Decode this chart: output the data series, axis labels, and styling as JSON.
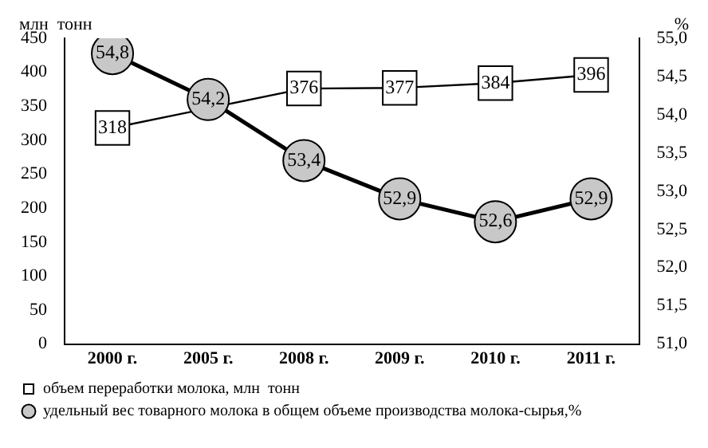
{
  "chart_data": {
    "type": "line",
    "categories": [
      "2000 г.",
      "2005 г.",
      "2008 г.",
      "2009 г.",
      "2010 г.",
      "2011 г."
    ],
    "ylabel": "млн  тонн",
    "y2label": "%",
    "ylim": [
      0,
      450
    ],
    "yticks": [
      0,
      50,
      100,
      150,
      200,
      250,
      300,
      350,
      400,
      450
    ],
    "y2lim": [
      51,
      55
    ],
    "y2ticks": [
      {
        "value": 51,
        "label": "51,0"
      },
      {
        "value": 51.5,
        "label": "51,5"
      },
      {
        "value": 52,
        "label": "52,0"
      },
      {
        "value": 52.5,
        "label": "52,5"
      },
      {
        "value": 53,
        "label": "53,0"
      },
      {
        "value": 53.5,
        "label": "53,5"
      },
      {
        "value": 54,
        "label": "54,0"
      },
      {
        "value": 54.5,
        "label": "54,5"
      },
      {
        "value": 55,
        "label": "55,0"
      }
    ],
    "grid": false,
    "legend": "bottom",
    "series": [
      {
        "name": "объем переработки молока, млн  тонн",
        "color": "#ffffff",
        "marker": "square",
        "values": [
          318,
          null,
          376,
          377,
          384,
          396
        ],
        "value_labels": [
          "318",
          null,
          "376",
          "377",
          "384",
          "396"
        ]
      },
      {
        "name": "удельный вес товарного молока в общем объеме производства молока-сырья,%",
        "color": "#c8c8c8",
        "marker": "circle",
        "axis": "y2",
        "values": [
          54.8,
          54.2,
          53.4,
          52.9,
          52.6,
          52.9
        ],
        "value_labels": [
          "54,8",
          "54,2",
          "53,4",
          "52,9",
          "52,6",
          "52,9"
        ]
      }
    ]
  }
}
